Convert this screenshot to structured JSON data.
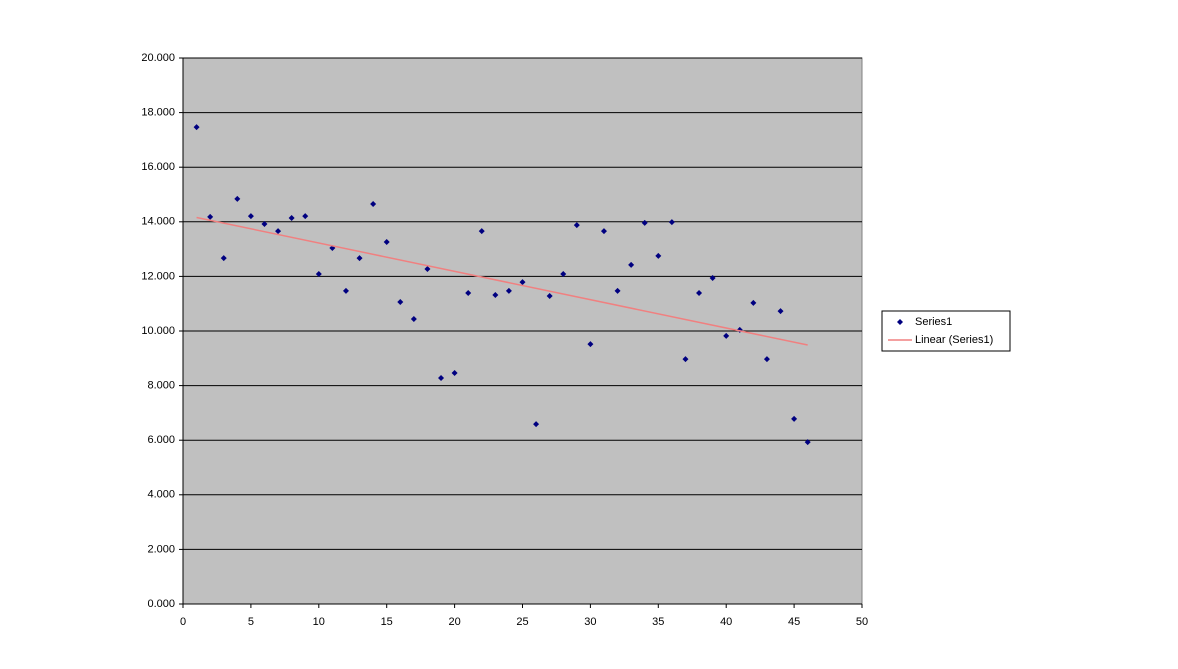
{
  "chart_data": {
    "type": "scatter",
    "x": [
      1,
      2,
      3,
      4,
      5,
      6,
      7,
      8,
      9,
      10,
      11,
      12,
      13,
      14,
      15,
      16,
      17,
      18,
      19,
      20,
      21,
      22,
      23,
      24,
      25,
      26,
      27,
      28,
      29,
      30,
      31,
      32,
      33,
      34,
      35,
      36,
      37,
      38,
      39,
      40,
      41,
      42,
      43,
      44,
      45,
      46
    ],
    "series": [
      {
        "name": "Series1",
        "color": "#000080",
        "values": [
          17.47,
          14.18,
          12.67,
          14.84,
          14.21,
          13.92,
          13.66,
          14.14,
          14.21,
          12.09,
          13.04,
          11.47,
          12.67,
          14.65,
          13.26,
          11.06,
          10.44,
          12.27,
          8.28,
          8.46,
          11.39,
          13.66,
          11.32,
          11.47,
          11.79,
          6.59,
          11.28,
          12.09,
          13.88,
          9.52,
          13.66,
          11.47,
          12.42,
          13.96,
          12.75,
          13.99,
          8.97,
          11.39,
          11.94,
          9.82,
          10.04,
          11.03,
          8.97,
          10.73,
          6.78,
          5.93
        ]
      }
    ],
    "trendline": {
      "name": "Linear (Series1)",
      "color": "#f08080"
    },
    "xlim": [
      0,
      50
    ],
    "xticks": [
      0,
      5,
      10,
      15,
      20,
      25,
      30,
      35,
      40,
      45,
      50
    ],
    "ylim": [
      0,
      20
    ],
    "yticks": [
      {
        "value": 0,
        "label": "0.000"
      },
      {
        "value": 2,
        "label": "2.000"
      },
      {
        "value": 4,
        "label": "4.000"
      },
      {
        "value": 6,
        "label": "6.000"
      },
      {
        "value": 8,
        "label": "8.000"
      },
      {
        "value": 10,
        "label": "10.000"
      },
      {
        "value": 12,
        "label": "12.000"
      },
      {
        "value": 14,
        "label": "14.000"
      },
      {
        "value": 16,
        "label": "16.000"
      },
      {
        "value": 18,
        "label": "18.000"
      },
      {
        "value": 20,
        "label": "20.000"
      }
    ],
    "grid": true,
    "legend": "right"
  }
}
